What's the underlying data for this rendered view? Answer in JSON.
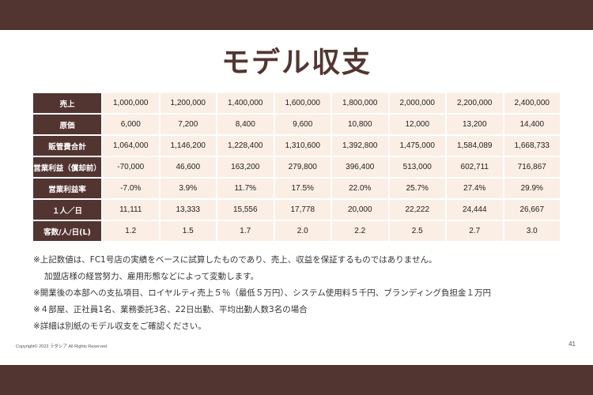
{
  "title": "モデル収支",
  "table": {
    "rows": [
      {
        "label": "売上",
        "values": [
          "1,000,000",
          "1,200,000",
          "1,400,000",
          "1,600,000",
          "1,800,000",
          "2,000,000",
          "2,200,000",
          "2,400,000"
        ]
      },
      {
        "label": "原価",
        "values": [
          "6,000",
          "7,200",
          "8,400",
          "9,600",
          "10,800",
          "12,000",
          "13,200",
          "14,400"
        ]
      },
      {
        "label": "販管費合計",
        "values": [
          "1,064,000",
          "1,146,200",
          "1,228,400",
          "1,310,600",
          "1,392,800",
          "1,475,000",
          "1,584,089",
          "1,668,733"
        ]
      },
      {
        "label": "営業利益（償却前）",
        "values": [
          "-70,000",
          "46,600",
          "163,200",
          "279,800",
          "396,400",
          "513,000",
          "602,711",
          "716,867"
        ]
      },
      {
        "label": "営業利益率",
        "values": [
          "-7.0%",
          "3.9%",
          "11.7%",
          "17.5%",
          "22.0%",
          "25.7%",
          "27.4%",
          "29.9%"
        ]
      },
      {
        "label": "１人／日",
        "values": [
          "11,111",
          "13,333",
          "15,556",
          "17,778",
          "20,000",
          "22,222",
          "24,444",
          "26,667"
        ]
      },
      {
        "label": "客数/人/日(L)",
        "values": [
          "1.2",
          "1.5",
          "1.7",
          "2.0",
          "2.2",
          "2.5",
          "2.7",
          "3.0"
        ]
      }
    ]
  },
  "notes": [
    "※上記数値は、FC1号店の実績をベースに試算したものであり、売上、収益を保証するものではありません。",
    "加盟店様の経営努力、雇用形態などによって変動します。",
    "※開業後の本部への支払項目、ロイヤルティ売上５％（最低５万円）、システム使用料５千円、ブランディング負担金１万円",
    "※４部屋、正社員1名、業務委託3名、22日出勤、平均出勤人数3名の場合",
    "※詳細は別紙のモデル収支をご確認ください。"
  ],
  "footer": {
    "copyright": "Copyright© 2023 ラダシア All Rights Reserved.",
    "page_number": "41"
  },
  "colors": {
    "band": "#523530",
    "title": "#533630",
    "cell": "#fbeee4"
  }
}
